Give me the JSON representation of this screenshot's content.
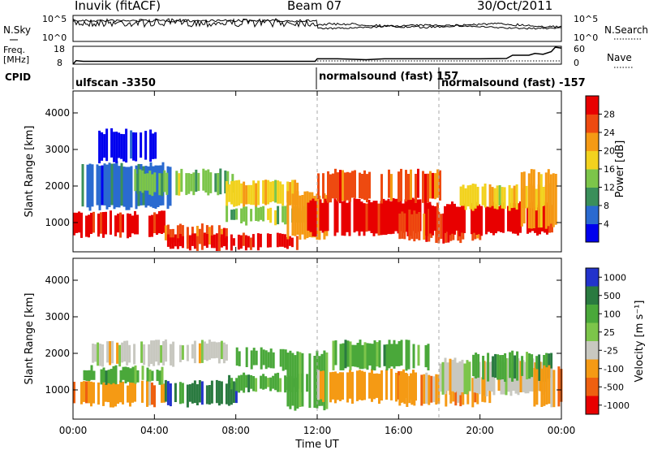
{
  "chart_data": [
    {
      "type": "header",
      "station": "Inuvik (fitACF)",
      "beam": "Beam 07",
      "date": "30/Oct/2011"
    },
    {
      "type": "line",
      "name": "noise-panel",
      "left_label": "N.Sky",
      "right_label": "N.Search",
      "left_ticks": [
        "10^5",
        "10^0"
      ],
      "right_ticks": [
        "10^5",
        "10^0"
      ]
    },
    {
      "type": "line",
      "name": "frequency-panel",
      "left_label_1": "Freq.",
      "left_label_2": "[MHz]",
      "right_label": "Nave",
      "left_ticks": [
        18,
        8
      ],
      "right_ticks": [
        60,
        0
      ],
      "freq_x_hours": [
        0,
        0.15,
        0.5,
        2,
        4,
        6,
        8,
        10,
        11.9,
        12.0,
        13,
        14.4,
        15.3,
        16.4,
        18,
        20,
        21.3,
        21.6,
        22.4,
        22.7,
        23.1,
        23.5,
        23.7,
        24
      ],
      "freq_mhz": [
        8,
        10,
        9.6,
        9.6,
        9.6,
        9.6,
        9.6,
        9.6,
        9.6,
        11,
        11,
        10.5,
        11,
        11,
        11,
        11,
        11.2,
        13,
        13,
        14,
        13.5,
        15,
        17.5,
        17
      ],
      "nave_x_hours": [
        12.0,
        24
      ],
      "nave_values": [
        11,
        11
      ]
    },
    {
      "type": "table",
      "name": "cpid-row",
      "label": "CPID",
      "segments": [
        {
          "label": "ulfscan -3350",
          "start_hour": 0,
          "end_hour": 12
        },
        {
          "label": "normalsound (fast) 157",
          "start_hour": 12,
          "end_hour": 18
        },
        {
          "label": "normalsound (fast) -157",
          "start_hour": 18,
          "end_hour": 24
        }
      ]
    },
    {
      "type": "heatmap",
      "name": "power",
      "ylabel": "Slant Range [km]",
      "ylim": [
        200,
        4600
      ],
      "yticks": [
        1000,
        2000,
        3000,
        4000
      ],
      "colorbar_label": "Power [dB]",
      "colorbar_ticks": [
        4,
        8,
        12,
        16,
        20,
        24,
        28
      ],
      "colors": [
        "#0000ee",
        "#2a6ad0",
        "#3a8f5a",
        "#7cc54a",
        "#f2d21e",
        "#f59a14",
        "#ee4a10",
        "#e80000"
      ],
      "echo_bands": [
        {
          "t0": 0,
          "t1": 4.5,
          "r0": 650,
          "r1": 1250,
          "level": 7
        },
        {
          "t0": 4.5,
          "t1": 7.5,
          "r0": 450,
          "r1": 900,
          "level": 6
        },
        {
          "t0": 4.5,
          "t1": 11,
          "r0": 300,
          "r1": 650,
          "level": 7
        },
        {
          "t0": 7.5,
          "t1": 11.8,
          "r0": 1000,
          "r1": 1400,
          "level": 3
        },
        {
          "t0": 0.3,
          "t1": 4.8,
          "r0": 1400,
          "r1": 2600,
          "level": 1
        },
        {
          "t0": 1,
          "t1": 4,
          "r0": 2700,
          "r1": 3500,
          "level": 0
        },
        {
          "t0": 3,
          "t1": 8,
          "r0": 1800,
          "r1": 2400,
          "level": 3
        },
        {
          "t0": 7.5,
          "t1": 11,
          "r0": 1500,
          "r1": 2100,
          "level": 4
        },
        {
          "t0": 10.5,
          "t1": 12.5,
          "r0": 600,
          "r1": 1800,
          "level": 5
        },
        {
          "t0": 11.5,
          "t1": 17.5,
          "r0": 700,
          "r1": 1600,
          "level": 7
        },
        {
          "t0": 12,
          "t1": 18,
          "r0": 1600,
          "r1": 2400,
          "level": 6
        },
        {
          "t0": 16,
          "t1": 20,
          "r0": 500,
          "r1": 1300,
          "level": 6
        },
        {
          "t0": 17.5,
          "t1": 23.5,
          "r0": 700,
          "r1": 1500,
          "level": 7
        },
        {
          "t0": 19,
          "t1": 23.5,
          "r0": 1400,
          "r1": 2000,
          "level": 4
        },
        {
          "t0": 22,
          "t1": 24,
          "r0": 900,
          "r1": 2400,
          "level": 5
        }
      ]
    },
    {
      "type": "heatmap",
      "name": "velocity",
      "ylabel": "Slant Range [km]",
      "ylim": [
        200,
        4600
      ],
      "yticks": [
        1000,
        2000,
        3000,
        4000
      ],
      "xlabel": "Time UT",
      "xticks": [
        "00:00",
        "04:00",
        "08:00",
        "12:00",
        "16:00",
        "20:00",
        "00:00"
      ],
      "xtick_hours": [
        0,
        4,
        8,
        12,
        16,
        20,
        24
      ],
      "colorbar_label": "Velocity [m s⁻¹]",
      "colorbar_ticks": [
        "1000",
        "500",
        "100",
        "25",
        "-25",
        "-100",
        "-500",
        "-1000"
      ],
      "colors": [
        "#2233cc",
        "#2a7a40",
        "#4aa83a",
        "#7cc54a",
        "#c8c8c0",
        "#f59a14",
        "#ee6010",
        "#e80000"
      ],
      "echo_bands": [
        {
          "t0": 0,
          "t1": 4.5,
          "r0": 600,
          "r1": 1200,
          "level": 5
        },
        {
          "t0": 0.5,
          "t1": 4.5,
          "r0": 1200,
          "r1": 1600,
          "level": 2
        },
        {
          "t0": 0.8,
          "t1": 5,
          "r0": 1700,
          "r1": 2300,
          "level": 4
        },
        {
          "t0": 4.5,
          "t1": 8,
          "r0": 600,
          "r1": 1200,
          "level": 1
        },
        {
          "t0": 4.5,
          "t1": 7.5,
          "r0": 1800,
          "r1": 2300,
          "level": 4
        },
        {
          "t0": 7.5,
          "t1": 11.5,
          "r0": 1000,
          "r1": 1400,
          "level": 2
        },
        {
          "t0": 8,
          "t1": 10.5,
          "r0": 1600,
          "r1": 2100,
          "level": 2
        },
        {
          "t0": 10.5,
          "t1": 12.5,
          "r0": 500,
          "r1": 2000,
          "level": 2
        },
        {
          "t0": 12,
          "t1": 17,
          "r0": 700,
          "r1": 1500,
          "level": 5
        },
        {
          "t0": 12.5,
          "t1": 17.5,
          "r0": 1600,
          "r1": 2300,
          "level": 2
        },
        {
          "t0": 16,
          "t1": 20.5,
          "r0": 600,
          "r1": 1400,
          "level": 5
        },
        {
          "t0": 18,
          "t1": 23.5,
          "r0": 900,
          "r1": 1800,
          "level": 4
        },
        {
          "t0": 19.5,
          "t1": 23.5,
          "r0": 1300,
          "r1": 2000,
          "level": 2
        },
        {
          "t0": 22.5,
          "t1": 24,
          "r0": 600,
          "r1": 1600,
          "level": 5
        }
      ]
    }
  ]
}
